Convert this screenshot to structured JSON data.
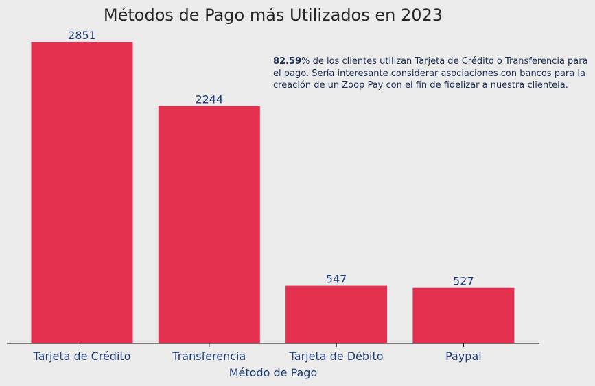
{
  "chart_data": {
    "type": "bar",
    "title": "Métodos de Pago más Utilizados en 2023",
    "xlabel": "Método de Pago",
    "ylabel": "",
    "categories": [
      "Tarjeta de Crédito",
      "Transferencia",
      "Tarjeta de Débito",
      "Paypal"
    ],
    "values": [
      2851,
      2244,
      547,
      527
    ],
    "ylim": [
      0,
      2851
    ],
    "grid": false,
    "legend": "none",
    "bar_color": "#e3314f",
    "annotation": {
      "highlight": "82.59",
      "text": "% de los clientes utilizan Tarjeta de Crédito o Transferencia para el pago. Sería interesante considerar asociaciones con bancos para la creación de un Zoop Pay con el fin de fidelizar a nuestra clientela."
    }
  }
}
